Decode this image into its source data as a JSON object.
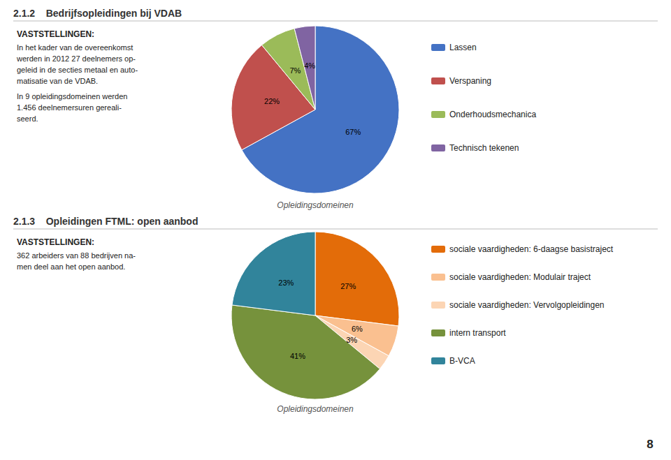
{
  "chart_data": [
    {
      "type": "pie",
      "title": "2.1.2    Bedrijfsopleidingen bij VDAB",
      "subtitle": "Opleidingsdomeinen",
      "annotations": [
        "VASTSTELLINGEN:",
        "In het kader van de overeenkomst\nwerden in 2012 27 deelnemers op-\ngeleid in de secties metaal en auto-\nmatisatie van de VDAB.",
        "In 9 opleidingsdomeinen werden\n1.456 deelnemersuren gereali-\nseerd."
      ],
      "categories": [
        "Lassen",
        "Verspaning",
        "Onderhoudsmechanica",
        "Technisch tekenen"
      ],
      "values": [
        67,
        22,
        7,
        4
      ],
      "value_labels": [
        "67%",
        "22%",
        "7%",
        "4%"
      ],
      "colors": [
        "#4472C4",
        "#C0504D",
        "#9BBB59",
        "#8064A2"
      ],
      "data_labels": true,
      "legend": "right"
    },
    {
      "type": "pie",
      "title": "2.1.3    Opleidingen FTML: open aanbod",
      "subtitle": "Opleidingsdomeinen",
      "annotations": [
        "VASTSTELLINGEN:",
        "362 arbeiders van 88 bedrijven na-\nmen deel aan het open aanbod.",
        "8"
      ],
      "categories": [
        "sociale vaardigheden: 6-daagse basistraject",
        "sociale vaardigheden: Modulair traject",
        "sociale vaardigheden: Vervolgopleidingen",
        "intern transport",
        "B-VCA"
      ],
      "values": [
        27,
        6,
        3,
        41,
        23
      ],
      "value_labels": [
        "27%",
        "6%",
        "3%",
        "41%",
        "23%"
      ],
      "colors": [
        "#E36C09",
        "#FAC090",
        "#FCD5B4",
        "#76923C",
        "#31849B"
      ],
      "data_labels": true,
      "legend": "right"
    }
  ]
}
